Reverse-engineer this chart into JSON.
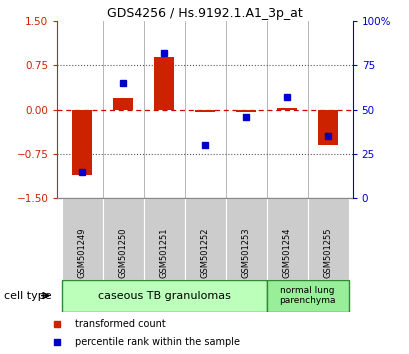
{
  "title": "GDS4256 / Hs.9192.1.A1_3p_at",
  "samples": [
    "GSM501249",
    "GSM501250",
    "GSM501251",
    "GSM501252",
    "GSM501253",
    "GSM501254",
    "GSM501255"
  ],
  "red_values": [
    -1.1,
    0.2,
    0.9,
    -0.03,
    -0.03,
    0.03,
    -0.6
  ],
  "blue_values_pct": [
    15,
    65,
    82,
    30,
    46,
    57,
    35
  ],
  "ylim_left": [
    -1.5,
    1.5
  ],
  "yticks_left": [
    -1.5,
    -0.75,
    0,
    0.75,
    1.5
  ],
  "ylim_right": [
    0,
    100
  ],
  "yticks_right": [
    0,
    25,
    50,
    75,
    100
  ],
  "group1_label": "caseous TB granulomas",
  "group2_label": "normal lung\nparenchyma",
  "cell_type_label": "cell type",
  "legend_red": "transformed count",
  "legend_blue": "percentile rank within the sample",
  "bar_width": 0.5,
  "red_color": "#cc2200",
  "blue_color": "#0000cc",
  "group1_color": "#bbffbb",
  "group2_color": "#99ee99",
  "sample_bg_color": "#cccccc",
  "dotted_line_color": "#555555",
  "zero_line_color": "#cc0000",
  "group_border_color": "#338833"
}
